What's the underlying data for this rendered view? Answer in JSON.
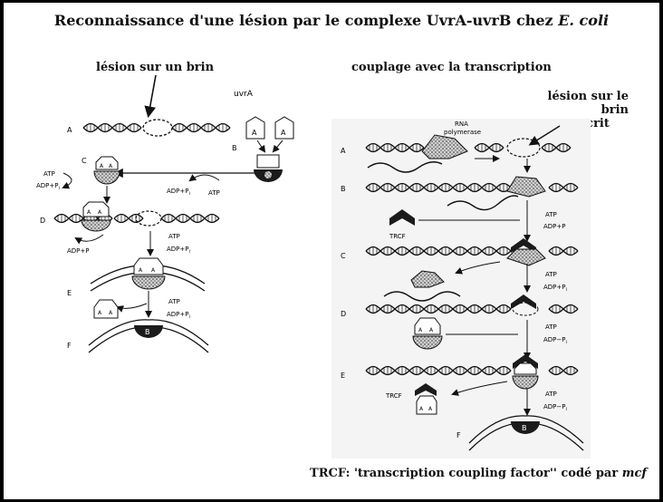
{
  "title": {
    "main": "Reconnaissance d'une lésion par le complexe UvrA-uvrB chez ",
    "organism": "E. coli"
  },
  "left": {
    "heading": "lésion sur un brin",
    "protein_label": "uvrA",
    "steps": [
      "A",
      "B",
      "C",
      "D",
      "E",
      "F"
    ],
    "labels": {
      "atp": "ATP",
      "adp_pi": "ADP+P",
      "pi_sub": "i",
      "adp_p": "ADP+P",
      "b": "B",
      "a": "A"
    }
  },
  "right": {
    "heading": "couplage avec la transcription",
    "lesion_heading_line1": "lésion sur le brin",
    "lesion_heading_line2": "transcrit",
    "rna_pol_line1": "RNA",
    "rna_pol_line2": "polymerase",
    "steps": [
      "A",
      "B",
      "C",
      "D",
      "E",
      "F"
    ],
    "labels": {
      "atp": "ATP",
      "adp_p": "ADP+P",
      "adp_pi": "ADP+P",
      "adp_minus": "ADP−P",
      "pi_sub": "i",
      "trcf": "TRCF",
      "b": "B",
      "a": "A"
    }
  },
  "caption": {
    "text": "TRCF: 'transcription coupling factor'' codé par ",
    "gene": "mcf"
  },
  "colors": {
    "background": "#000000",
    "panel": "#ffffff",
    "ink": "#111111",
    "figure_bg": "#f4f4f4",
    "stipple": "#8a8a8a",
    "dark": "#1b1b1b"
  }
}
